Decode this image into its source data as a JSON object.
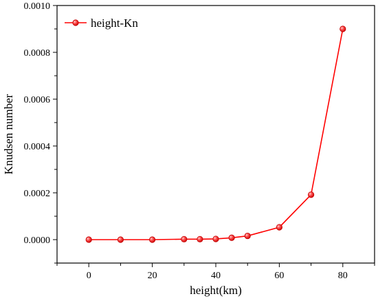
{
  "chart_data": {
    "type": "line",
    "title": "",
    "xlabel": "height(km)",
    "ylabel": "Knudsen number",
    "xlim": [
      -10,
      90
    ],
    "ylim": [
      -0.0001,
      0.001
    ],
    "xticks": [
      0,
      20,
      40,
      60,
      80
    ],
    "xtick_labels": [
      "0",
      "20",
      "40",
      "60",
      "80"
    ],
    "yticks": [
      0,
      0.0002,
      0.0004,
      0.0006,
      0.0008,
      0.001
    ],
    "ytick_labels": [
      "0.0000",
      "0.0002",
      "0.0004",
      "0.0006",
      "0.0008",
      "0.0010"
    ],
    "grid": false,
    "legend_position": "top-left",
    "series": [
      {
        "name": "height-Kn",
        "color": "#ff0000",
        "marker": "circle",
        "x": [
          0,
          10,
          20,
          30,
          35,
          40,
          45,
          50,
          60,
          70,
          80
        ],
        "y": [
          0.0,
          0.0,
          0.0,
          2e-06,
          2e-06,
          3e-06,
          8e-06,
          1.6e-05,
          5.3e-05,
          0.000192,
          0.0009
        ]
      }
    ]
  }
}
